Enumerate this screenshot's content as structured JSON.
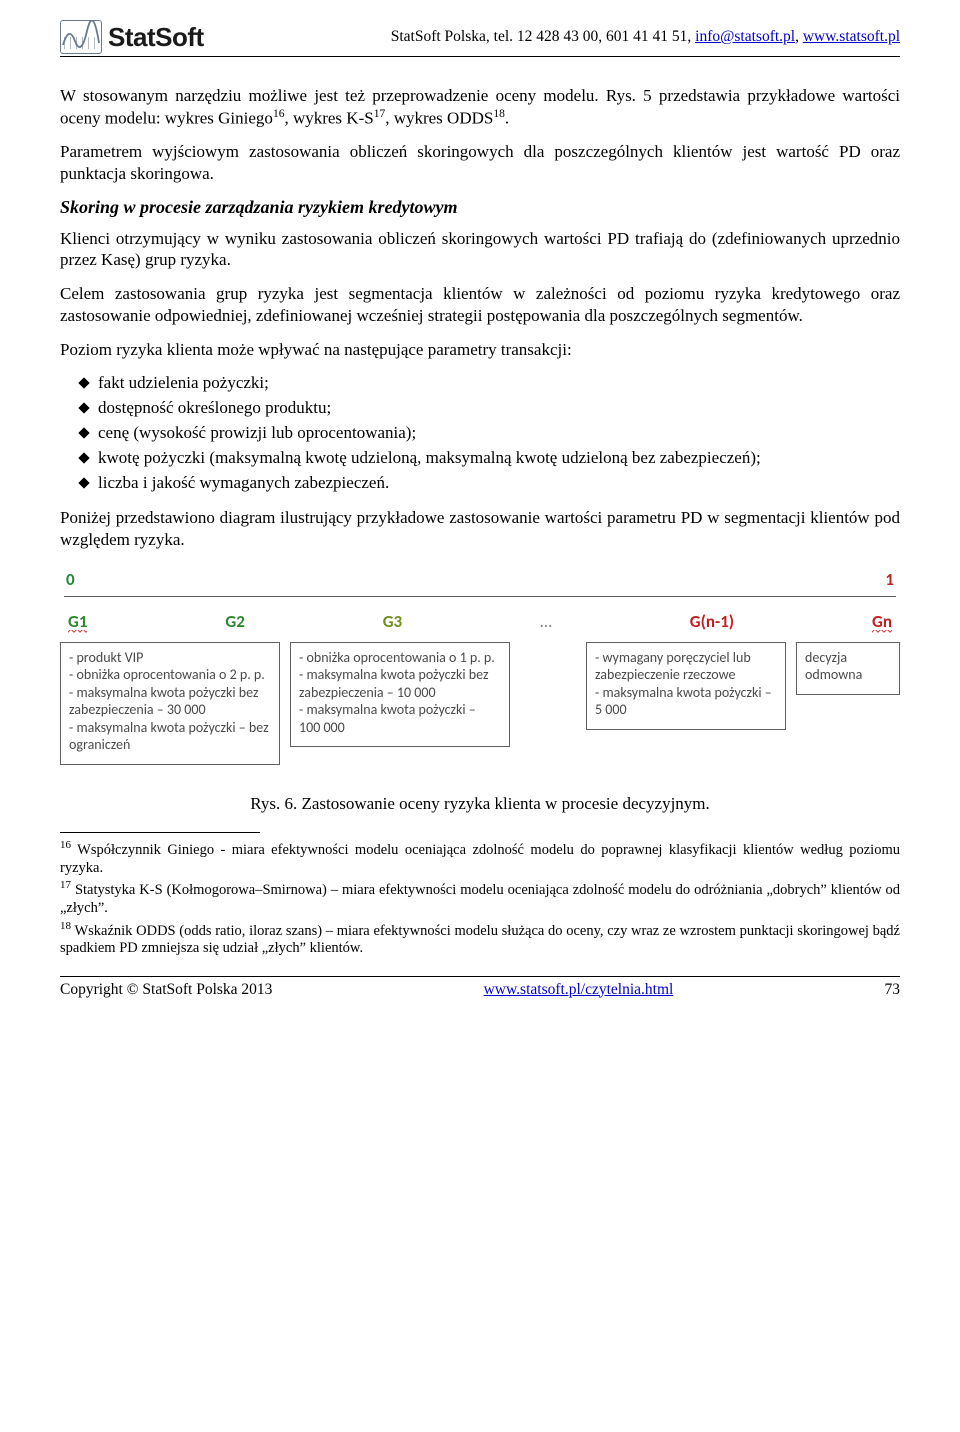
{
  "header": {
    "company": "StatSoft",
    "contact_prefix": "StatSoft Polska, tel. 12 428 43 00, 601 41 41 51, ",
    "email": "info@statsoft.pl",
    "site_prefix": ", ",
    "site": "www.statsoft.pl"
  },
  "body": {
    "p1_a": "W stosowanym narzędziu możliwe jest też przeprowadzenie oceny modelu. Rys. 5 przedstawia przykładowe wartości oceny modelu: wykres Giniego",
    "p1_b": ", wykres K-S",
    "p1_c": ", wykres ODDS",
    "p1_d": ".",
    "p2": "Parametrem wyjściowym zastosowania obliczeń skoringowych dla poszczególnych klientów jest wartość PD oraz punktacja skoringowa.",
    "h1": "Skoring w procesie zarządzania ryzykiem kredytowym",
    "p3": "Klienci otrzymujący w wyniku zastosowania obliczeń skoringowych wartości PD trafiają do (zdefiniowanych uprzednio przez Kasę) grup ryzyka.",
    "p4": "Celem zastosowania grup ryzyka jest segmentacja klientów w zależności od poziomu ryzyka kredytowego oraz zastosowanie odpowiedniej, zdefiniowanej wcześniej strategii postępowania dla poszczególnych segmentów.",
    "p5": "Poziom ryzyka klienta może wpływać na następujące parametry transakcji:",
    "bullets": [
      "fakt udzielenia pożyczki;",
      "dostępność określonego produktu;",
      "cenę (wysokość prowizji lub oprocentowania);",
      "kwotę pożyczki (maksymalną kwotę udzieloną, maksymalną kwotę udzieloną bez zabezpieczeń);",
      "liczba i jakość wymaganych zabezpieczeń."
    ],
    "p6": "Poniżej przedstawiono diagram ilustrujący przykładowe zastosowanie wartości parametru PD w segmentacji klientów pod względem ryzyka.",
    "caption": "Rys. 6. Zastosowanie oceny ryzyka klienta w procesie decyzyjnym."
  },
  "diagram": {
    "scale": {
      "low": "0",
      "high": "1"
    },
    "groups": {
      "g1": "G1",
      "g2": "G2",
      "g3": "G3",
      "dots": "…",
      "gn1": "G(n-1)",
      "gn": "Gn"
    },
    "colors": {
      "green": "#2c8a2c",
      "olive": "#6f8f1f",
      "red": "#c22020",
      "box_border": "#606060",
      "box_text": "#4a4a4a"
    },
    "boxes": {
      "b1": "- produkt VIP\n- obniżka oprocentowania o 2 p. p.\n- maksymalna kwota pożyczki bez zabezpieczenia – 30 000\n- maksymalna kwota pożyczki – bez ograniczeń",
      "b2": "- obniżka oprocentowania o 1 p. p.\n- maksymalna kwota pożyczki bez zabezpieczenia – 10 000\n- maksymalna kwota pożyczki – 100 000",
      "b3": "- wymagany poręczyciel lub zabezpieczenie rzeczowe\n- maksymalna kwota pożyczki – 5 000",
      "b4": "decyzja odmowna"
    }
  },
  "footnotes": {
    "fn16": " Współczynnik Giniego - miara efektywności modelu oceniająca zdolność modelu do poprawnej klasyfikacji klientów według poziomu ryzyka.",
    "fn17": " Statystyka K-S (Kołmogorowa–Smirnowa) – miara efektywności modelu oceniająca zdolność modelu do odróżniania „dobrych” klientów od „złych”.",
    "fn18": " Wskaźnik ODDS (odds ratio, iloraz szans) – miara efektywności modelu służąca do oceny, czy wraz ze wzrostem punktacji skoringowej bądź spadkiem PD zmniejsza się udział „złych” klientów."
  },
  "footer": {
    "left": "Copyright © StatSoft Polska 2013",
    "mid": "www.statsoft.pl/czytelnia.html",
    "page": "73"
  }
}
